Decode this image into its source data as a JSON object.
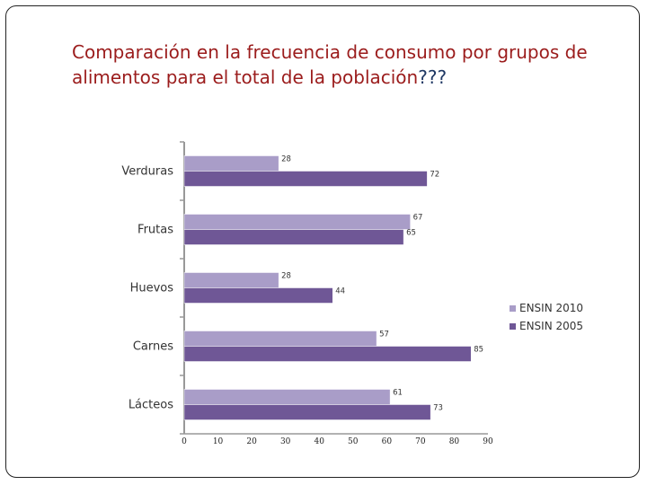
{
  "slide": {
    "title_main": "Comparación en la frecuencia de consumo por grupos de alimentos para el total de la población",
    "title_suffix": "???"
  },
  "colors": {
    "series_2010": "#a99dc8",
    "series_2005": "#6f5796",
    "axis": "#999999"
  },
  "chart_data": {
    "type": "bar",
    "orientation": "horizontal",
    "title": "",
    "xlabel": "",
    "ylabel": "",
    "categories": [
      "Verduras",
      "Frutas",
      "Huevos",
      "Carnes",
      "Lácteos"
    ],
    "series": [
      {
        "name": "ENSIN 2010",
        "values": [
          28,
          67,
          28,
          57,
          61
        ]
      },
      {
        "name": "ENSIN 2005",
        "values": [
          72,
          65,
          44,
          85,
          73
        ]
      }
    ],
    "xlim": [
      0,
      90
    ],
    "xticks": [
      0,
      10,
      20,
      30,
      40,
      50,
      60,
      70,
      80,
      90
    ],
    "grid": false,
    "legend_position": "right"
  }
}
